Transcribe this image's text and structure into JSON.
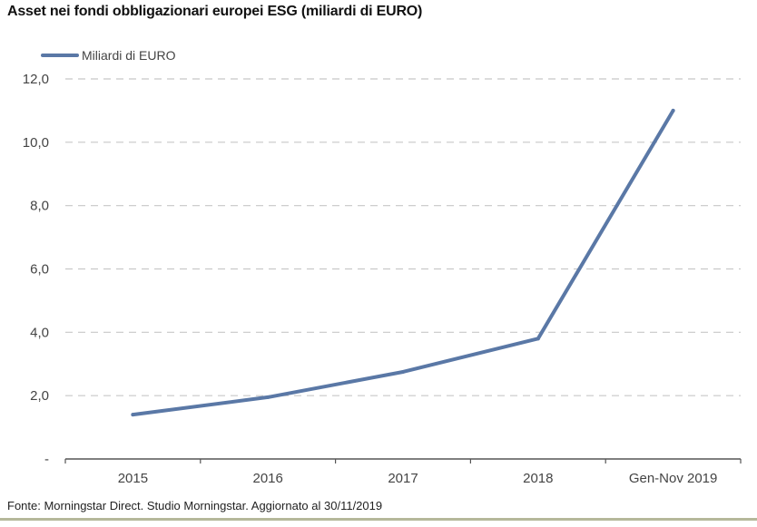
{
  "chart_data": {
    "type": "line",
    "title": "Asset nei fondi obbligazionari europei ESG (miliardi di EURO)",
    "categories": [
      "2015",
      "2016",
      "2017",
      "2018",
      "Gen-Nov 2019"
    ],
    "series": [
      {
        "name": "Miliardi di EURO",
        "values": [
          1.4,
          1.95,
          2.75,
          3.8,
          11.0
        ],
        "color": "#5a78a6"
      }
    ],
    "ylim": [
      0,
      12
    ],
    "yticks": [
      {
        "value": 0,
        "label": "-"
      },
      {
        "value": 2,
        "label": "2,0"
      },
      {
        "value": 4,
        "label": "4,0"
      },
      {
        "value": 6,
        "label": "6,0"
      },
      {
        "value": 8,
        "label": "8,0"
      },
      {
        "value": 10,
        "label": "10,0"
      },
      {
        "value": 12,
        "label": "12,0"
      }
    ],
    "grid": true,
    "legend": "top-left",
    "xlabel": "",
    "ylabel": ""
  },
  "source_note": "Fonte: Morningstar Direct. Studio Morningstar. Aggiornato al 30/11/2019",
  "colors": {
    "grid": "#c8c8c8",
    "axis": "#555555",
    "footer_rule": "#b5b89a"
  }
}
